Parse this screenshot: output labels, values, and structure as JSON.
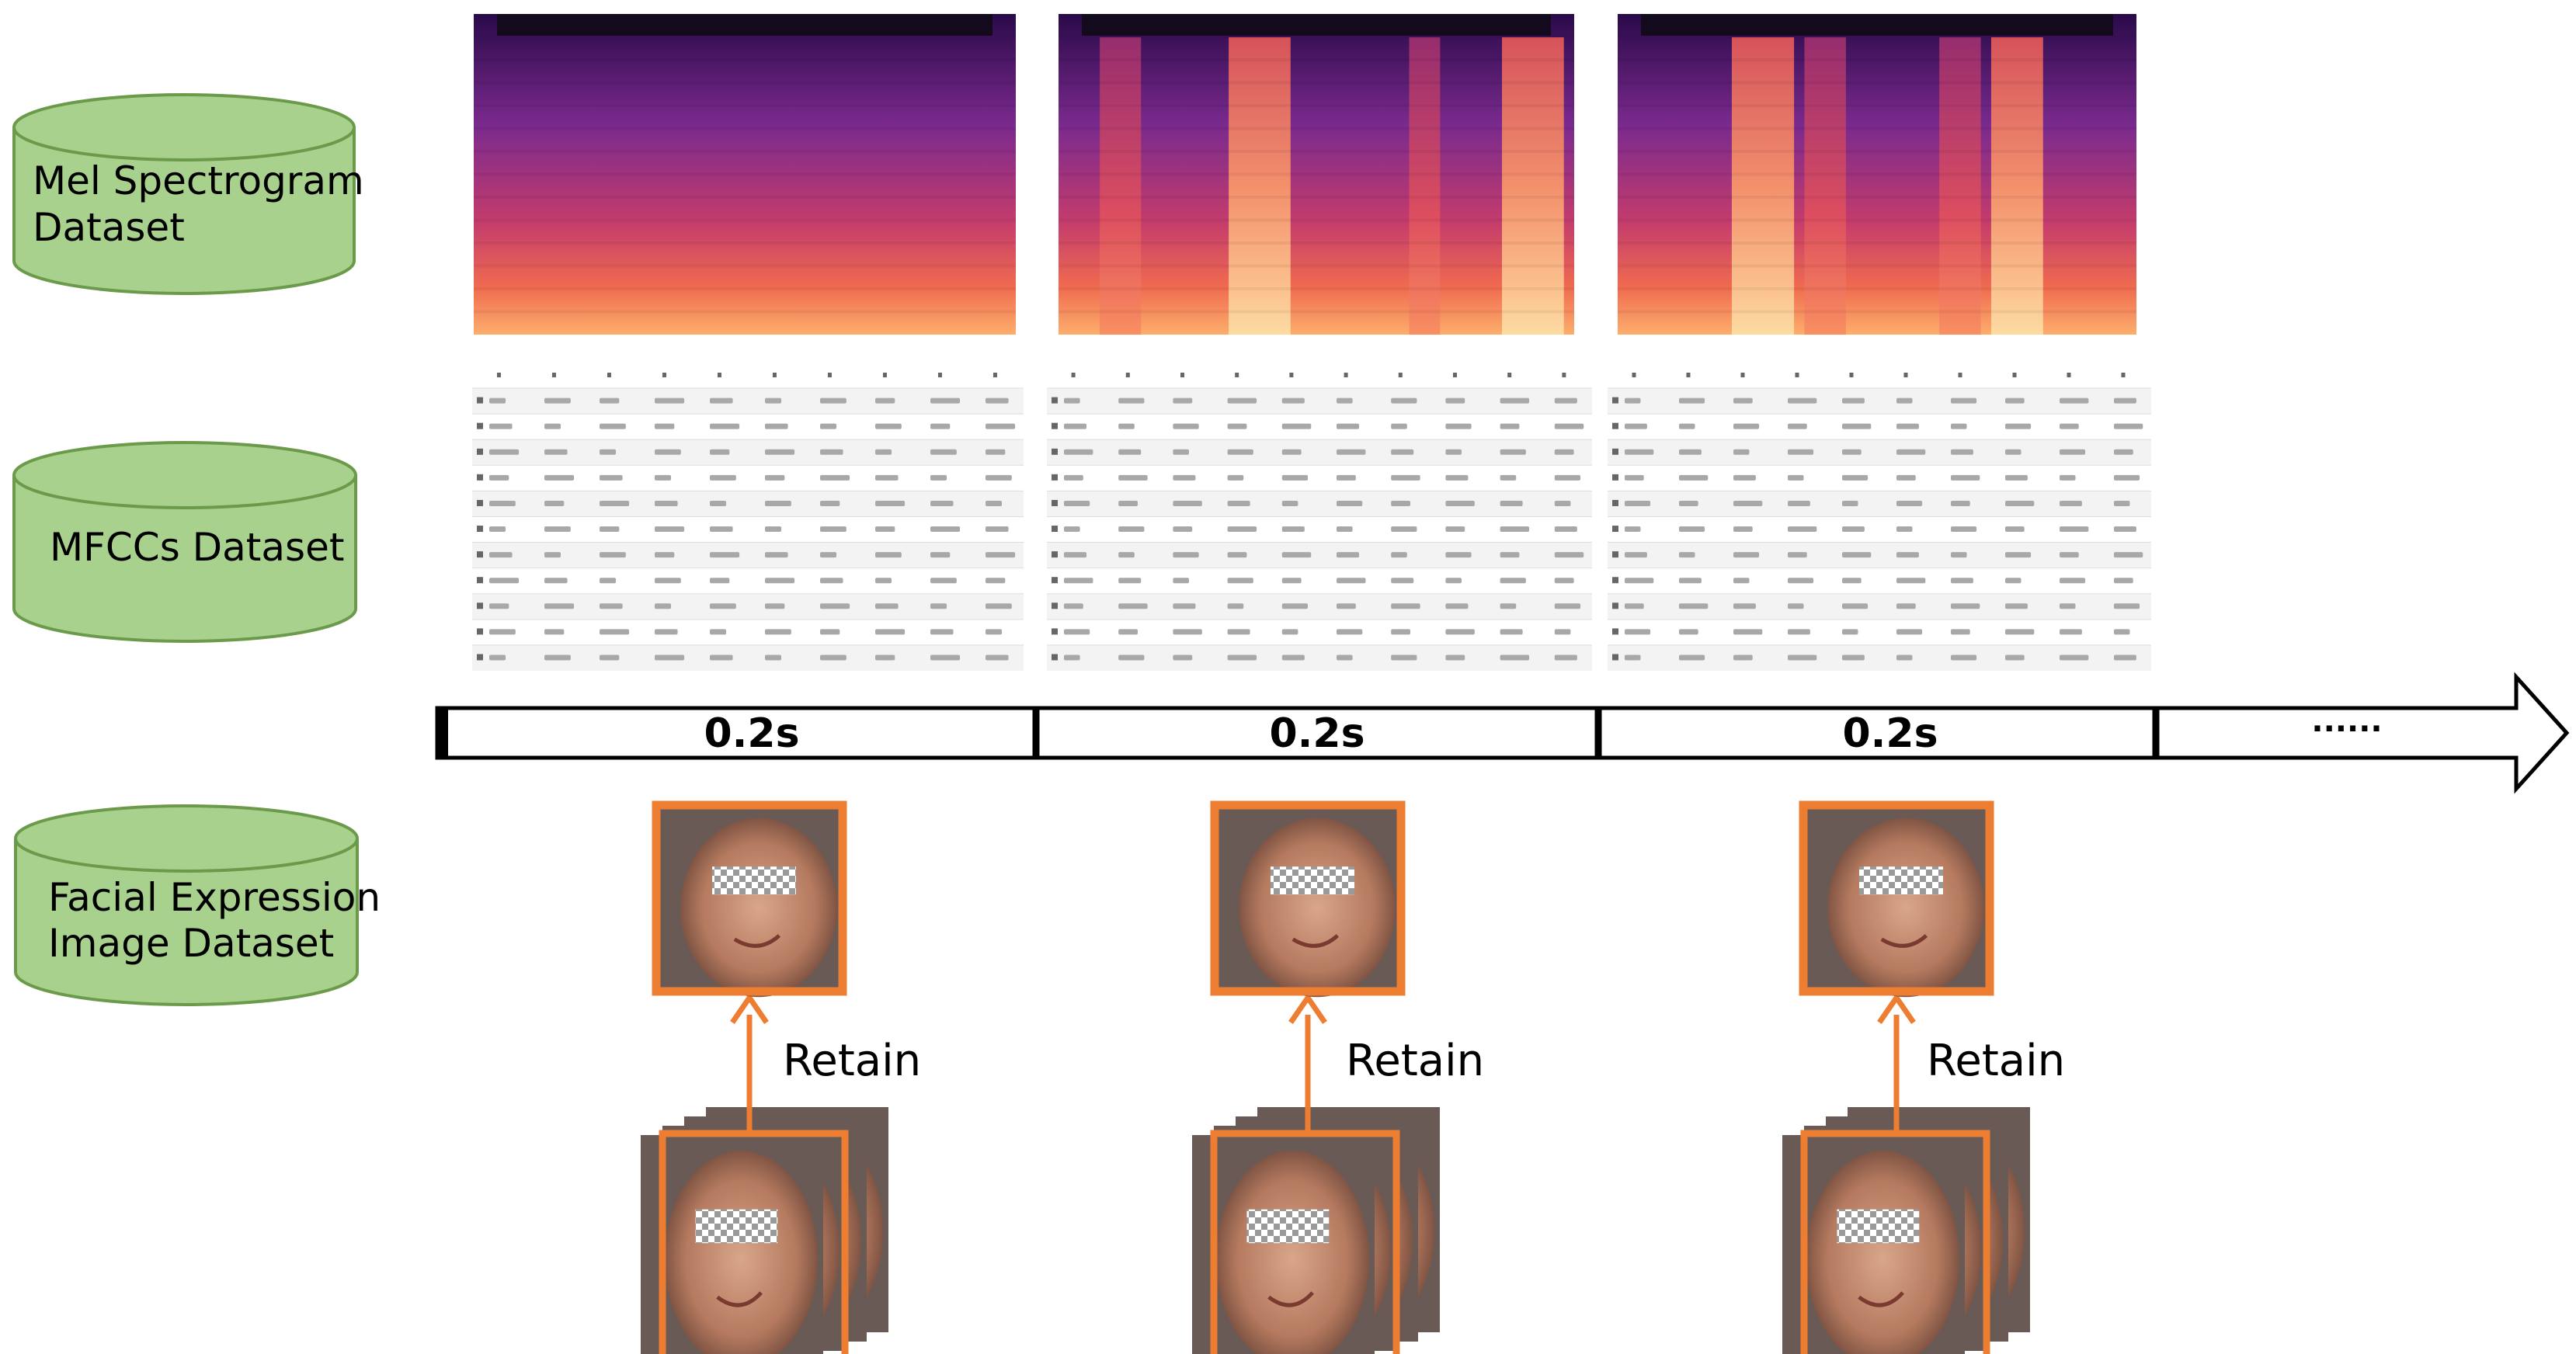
{
  "datasets": [
    {
      "id": "mel",
      "lines": [
        "Mel Spectrogram",
        "Dataset"
      ]
    },
    {
      "id": "mfcc",
      "lines": [
        "MFCCs Dataset"
      ]
    },
    {
      "id": "facial",
      "lines": [
        "Facial Expression",
        "Image Dataset"
      ]
    }
  ],
  "timeline": {
    "segments": [
      "0.2s",
      "0.2s",
      "0.2s"
    ],
    "ellipsis": "······"
  },
  "frames": [
    {
      "retain_label": "Retain"
    },
    {
      "retain_label": "Retain"
    },
    {
      "retain_label": "Retain"
    }
  ],
  "colors": {
    "cylinder_fill": "#a9d18e",
    "cylinder_stroke": "#6a9a4a",
    "frame_orange": "#ed7d31",
    "timeline_stroke": "#000000"
  }
}
